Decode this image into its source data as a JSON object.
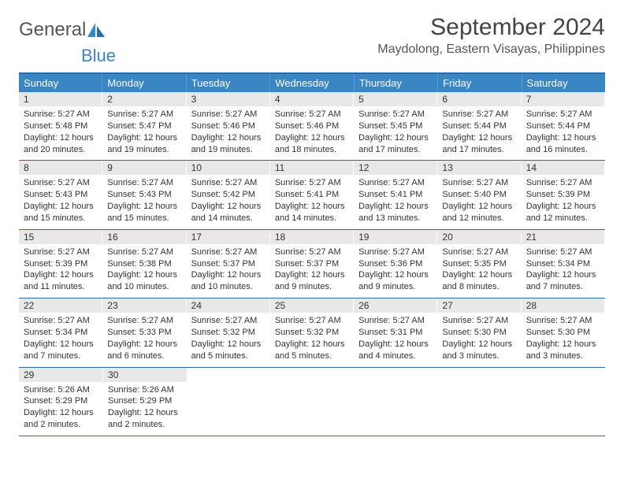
{
  "brand": {
    "part1": "General",
    "part2": "Blue"
  },
  "title": "September 2024",
  "location": "Maydolong, Eastern Visayas, Philippines",
  "day_headers": [
    "Sunday",
    "Monday",
    "Tuesday",
    "Wednesday",
    "Thursday",
    "Friday",
    "Saturday"
  ],
  "colors": {
    "header_bg": "#3a86c5",
    "header_border_top": "#2d6ca2",
    "daynum_bg": "#e8e8e8",
    "text": "#333333"
  },
  "weeks": [
    [
      {
        "n": "1",
        "sr": "Sunrise: 5:27 AM",
        "ss": "Sunset: 5:48 PM",
        "dl": "Daylight: 12 hours and 20 minutes."
      },
      {
        "n": "2",
        "sr": "Sunrise: 5:27 AM",
        "ss": "Sunset: 5:47 PM",
        "dl": "Daylight: 12 hours and 19 minutes."
      },
      {
        "n": "3",
        "sr": "Sunrise: 5:27 AM",
        "ss": "Sunset: 5:46 PM",
        "dl": "Daylight: 12 hours and 19 minutes."
      },
      {
        "n": "4",
        "sr": "Sunrise: 5:27 AM",
        "ss": "Sunset: 5:46 PM",
        "dl": "Daylight: 12 hours and 18 minutes."
      },
      {
        "n": "5",
        "sr": "Sunrise: 5:27 AM",
        "ss": "Sunset: 5:45 PM",
        "dl": "Daylight: 12 hours and 17 minutes."
      },
      {
        "n": "6",
        "sr": "Sunrise: 5:27 AM",
        "ss": "Sunset: 5:44 PM",
        "dl": "Daylight: 12 hours and 17 minutes."
      },
      {
        "n": "7",
        "sr": "Sunrise: 5:27 AM",
        "ss": "Sunset: 5:44 PM",
        "dl": "Daylight: 12 hours and 16 minutes."
      }
    ],
    [
      {
        "n": "8",
        "sr": "Sunrise: 5:27 AM",
        "ss": "Sunset: 5:43 PM",
        "dl": "Daylight: 12 hours and 15 minutes."
      },
      {
        "n": "9",
        "sr": "Sunrise: 5:27 AM",
        "ss": "Sunset: 5:43 PM",
        "dl": "Daylight: 12 hours and 15 minutes."
      },
      {
        "n": "10",
        "sr": "Sunrise: 5:27 AM",
        "ss": "Sunset: 5:42 PM",
        "dl": "Daylight: 12 hours and 14 minutes."
      },
      {
        "n": "11",
        "sr": "Sunrise: 5:27 AM",
        "ss": "Sunset: 5:41 PM",
        "dl": "Daylight: 12 hours and 14 minutes."
      },
      {
        "n": "12",
        "sr": "Sunrise: 5:27 AM",
        "ss": "Sunset: 5:41 PM",
        "dl": "Daylight: 12 hours and 13 minutes."
      },
      {
        "n": "13",
        "sr": "Sunrise: 5:27 AM",
        "ss": "Sunset: 5:40 PM",
        "dl": "Daylight: 12 hours and 12 minutes."
      },
      {
        "n": "14",
        "sr": "Sunrise: 5:27 AM",
        "ss": "Sunset: 5:39 PM",
        "dl": "Daylight: 12 hours and 12 minutes."
      }
    ],
    [
      {
        "n": "15",
        "sr": "Sunrise: 5:27 AM",
        "ss": "Sunset: 5:39 PM",
        "dl": "Daylight: 12 hours and 11 minutes."
      },
      {
        "n": "16",
        "sr": "Sunrise: 5:27 AM",
        "ss": "Sunset: 5:38 PM",
        "dl": "Daylight: 12 hours and 10 minutes."
      },
      {
        "n": "17",
        "sr": "Sunrise: 5:27 AM",
        "ss": "Sunset: 5:37 PM",
        "dl": "Daylight: 12 hours and 10 minutes."
      },
      {
        "n": "18",
        "sr": "Sunrise: 5:27 AM",
        "ss": "Sunset: 5:37 PM",
        "dl": "Daylight: 12 hours and 9 minutes."
      },
      {
        "n": "19",
        "sr": "Sunrise: 5:27 AM",
        "ss": "Sunset: 5:36 PM",
        "dl": "Daylight: 12 hours and 9 minutes."
      },
      {
        "n": "20",
        "sr": "Sunrise: 5:27 AM",
        "ss": "Sunset: 5:35 PM",
        "dl": "Daylight: 12 hours and 8 minutes."
      },
      {
        "n": "21",
        "sr": "Sunrise: 5:27 AM",
        "ss": "Sunset: 5:34 PM",
        "dl": "Daylight: 12 hours and 7 minutes."
      }
    ],
    [
      {
        "n": "22",
        "sr": "Sunrise: 5:27 AM",
        "ss": "Sunset: 5:34 PM",
        "dl": "Daylight: 12 hours and 7 minutes."
      },
      {
        "n": "23",
        "sr": "Sunrise: 5:27 AM",
        "ss": "Sunset: 5:33 PM",
        "dl": "Daylight: 12 hours and 6 minutes."
      },
      {
        "n": "24",
        "sr": "Sunrise: 5:27 AM",
        "ss": "Sunset: 5:32 PM",
        "dl": "Daylight: 12 hours and 5 minutes."
      },
      {
        "n": "25",
        "sr": "Sunrise: 5:27 AM",
        "ss": "Sunset: 5:32 PM",
        "dl": "Daylight: 12 hours and 5 minutes."
      },
      {
        "n": "26",
        "sr": "Sunrise: 5:27 AM",
        "ss": "Sunset: 5:31 PM",
        "dl": "Daylight: 12 hours and 4 minutes."
      },
      {
        "n": "27",
        "sr": "Sunrise: 5:27 AM",
        "ss": "Sunset: 5:30 PM",
        "dl": "Daylight: 12 hours and 3 minutes."
      },
      {
        "n": "28",
        "sr": "Sunrise: 5:27 AM",
        "ss": "Sunset: 5:30 PM",
        "dl": "Daylight: 12 hours and 3 minutes."
      }
    ],
    [
      {
        "n": "29",
        "sr": "Sunrise: 5:26 AM",
        "ss": "Sunset: 5:29 PM",
        "dl": "Daylight: 12 hours and 2 minutes."
      },
      {
        "n": "30",
        "sr": "Sunrise: 5:26 AM",
        "ss": "Sunset: 5:29 PM",
        "dl": "Daylight: 12 hours and 2 minutes."
      },
      null,
      null,
      null,
      null,
      null
    ]
  ]
}
